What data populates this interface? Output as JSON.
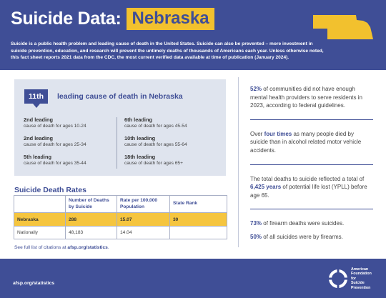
{
  "header": {
    "title": "Suicide Data:",
    "state": "Nebraska",
    "intro": "Suicide is a public health problem and leading cause of death in the United States. Suicide can also be prevented – more investment in suicide prevention, education, and research will prevent the untimely deaths of thousands of Americans each year. Unless otherwise noted, this fact sheet reports 2021 data from the CDC, the most current verified data available at time of publication (January 2024).",
    "map_icon": "nebraska-state-shape",
    "colors": {
      "navy": "#3f4e96",
      "gold": "#f2c12e"
    }
  },
  "leading": {
    "rank": "11th",
    "headline": "leading cause of death in Nebraska",
    "left": [
      {
        "rank": "2nd leading",
        "desc": "cause of death for ages 10-24"
      },
      {
        "rank": "2nd leading",
        "desc": "cause of death for ages 25-34"
      },
      {
        "rank": "5th leading",
        "desc": "cause of death for ages 35-44"
      }
    ],
    "right": [
      {
        "rank": "6th leading",
        "desc": "cause of death for ages 45-54"
      },
      {
        "rank": "10th leading",
        "desc": "cause of death for ages 55-64"
      },
      {
        "rank": "18th leading",
        "desc": "cause of death for ages 65+"
      }
    ]
  },
  "rates": {
    "title": "Suicide Death Rates",
    "headers": [
      "",
      "Number of Deaths by Suicide",
      "Rate per 100,000 Population",
      "State Rank"
    ],
    "rows": [
      [
        "Nebraska",
        "288",
        "15.07",
        "30"
      ],
      [
        "Nationally",
        "48,183",
        "14.04",
        ""
      ]
    ]
  },
  "citations": {
    "prefix": "See full list of citations at ",
    "link": "afsp.org/statistics",
    "suffix": "."
  },
  "facts": {
    "f1": {
      "strong": "52%",
      "text": " of communities did not have enough mental health providers to serve residents in 2023, according to federal guidelines."
    },
    "f2": {
      "pre": "Over ",
      "strong": "four times",
      "text": " as many people died by suicide than in alcohol related motor vehicle accidents."
    },
    "f3": {
      "pre": "The total deaths to suicide reflected a total of ",
      "strong": "6,425 years",
      "text": " of potential life lost (YPLL) before age 65."
    },
    "f4a": {
      "strong": "73%",
      "text": " of firearm deaths were suicides."
    },
    "f4b": {
      "strong": "50%",
      "text": " of all suicides were by firearms."
    }
  },
  "footer": {
    "url": "afsp.org/statistics",
    "logo_line1": "American",
    "logo_line2": "Foundation",
    "logo_line3": "for",
    "logo_line4": "Suicide",
    "logo_line5": "Prevention",
    "logo_icon": "lifesaver-ring-icon"
  }
}
